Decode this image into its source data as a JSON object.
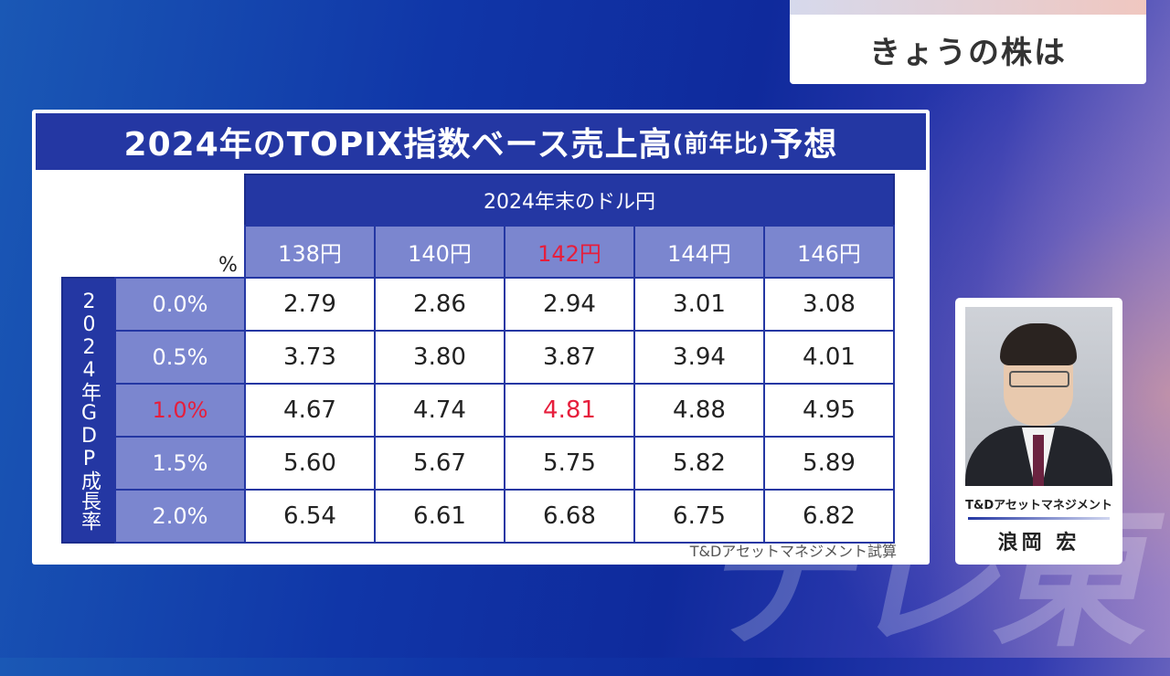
{
  "badge": {
    "text": "きょうの株は"
  },
  "panel": {
    "title_main": "2024年のTOPIX指数ベース売上高",
    "title_paren": "(前年比)",
    "title_end": "予想",
    "unit": "%",
    "col_group": "2024年末のドル円",
    "row_group": "2024年GDP成長率",
    "columns": [
      "138円",
      "140円",
      "142円",
      "144円",
      "146円"
    ],
    "highlight_col": 2,
    "rows": [
      {
        "label": "0.0%",
        "values": [
          "2.79",
          "2.86",
          "2.94",
          "3.01",
          "3.08"
        ]
      },
      {
        "label": "0.5%",
        "values": [
          "3.73",
          "3.80",
          "3.87",
          "3.94",
          "4.01"
        ]
      },
      {
        "label": "1.0%",
        "values": [
          "4.67",
          "4.74",
          "4.81",
          "4.88",
          "4.95"
        ]
      },
      {
        "label": "1.5%",
        "values": [
          "5.60",
          "5.67",
          "5.75",
          "5.82",
          "5.89"
        ]
      },
      {
        "label": "2.0%",
        "values": [
          "6.54",
          "6.61",
          "6.68",
          "6.75",
          "6.82"
        ]
      }
    ],
    "highlight_row": 2,
    "source": "T&Dアセットマネジメント試算",
    "highlight_color": "#e61e3c"
  },
  "presenter": {
    "org": "T&Dアセットマネジメント",
    "name": "浪岡 宏"
  }
}
